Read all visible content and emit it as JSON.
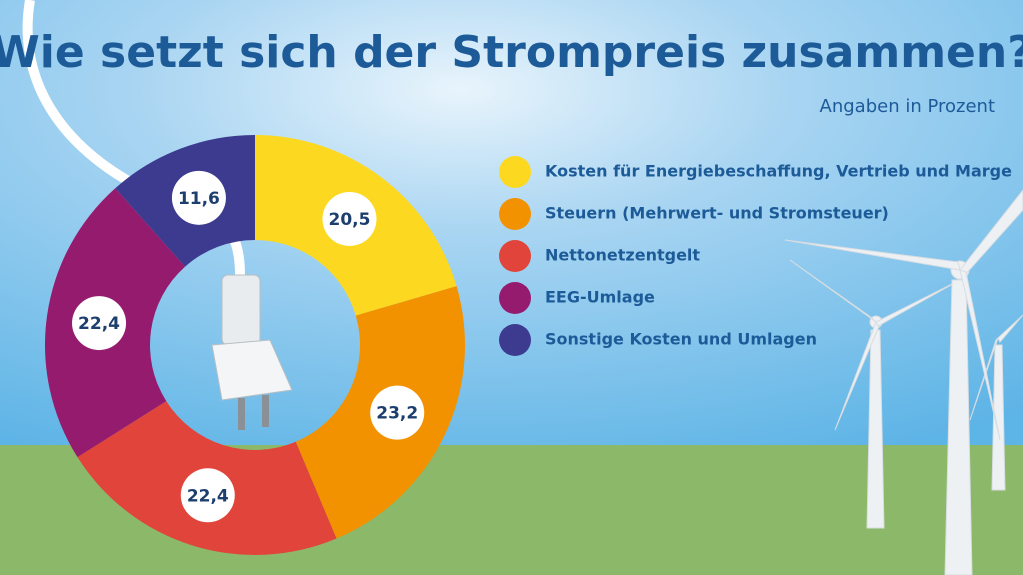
{
  "chart_data": {
    "type": "pie",
    "donut": true,
    "title": "Wie setzt sich der Strompreis zusammen?",
    "subtitle": "Angaben in Prozent",
    "categories": [
      "Kosten für Energiebeschaffung, Vertrieb und Marge",
      "Steuern (Mehrwert- und Stromsteuer)",
      "Nettonetzentgelt",
      "EEG-Umlage",
      "Sonstige Kosten und Umlagen"
    ],
    "values": [
      20.5,
      23.2,
      22.4,
      22.4,
      11.6
    ],
    "value_labels": [
      "20,5",
      "23,2",
      "22,4",
      "22,4",
      "11,6"
    ],
    "colors": [
      "#fcd920",
      "#f39200",
      "#e0443a",
      "#951b6e",
      "#3c3b8f"
    ]
  }
}
